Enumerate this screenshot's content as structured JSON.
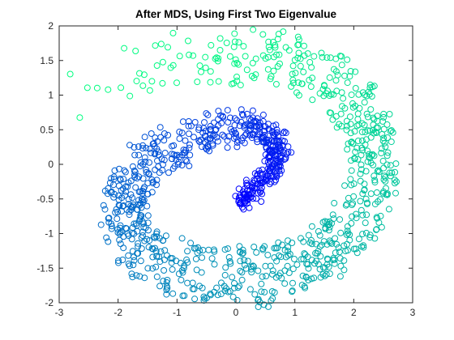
{
  "chart_data": {
    "type": "scatter",
    "title": "After MDS, Using First Two Eigenvalue",
    "xlabel": "",
    "ylabel": "",
    "xlim": [
      -3,
      3
    ],
    "ylim": [
      -2,
      2
    ],
    "x_ticks": [
      -3,
      -2,
      -1,
      0,
      1,
      2,
      3
    ],
    "y_ticks": [
      -2,
      -1.5,
      -1,
      -0.5,
      0,
      0.5,
      1,
      1.5,
      2
    ],
    "x_tick_labels": [
      "-3",
      "-2",
      "-1",
      "0",
      "1",
      "2",
      "3"
    ],
    "y_tick_labels": [
      "-2",
      "-1.5",
      "-1",
      "-0.5",
      "0",
      "0.5",
      "1",
      "1.5",
      "2"
    ],
    "grid": false,
    "legend": "none",
    "marker": "open-circle",
    "colormap": "winter",
    "color_start": "#0000ff",
    "color_end": "#00ff80",
    "description_of_data": "swiss-roll spiral, color varies along spiral parameter",
    "spiral_centerline": [
      {
        "t": 0.0,
        "x": 0.05,
        "y": -0.55
      },
      {
        "t": 0.05,
        "x": 0.4,
        "y": -0.3
      },
      {
        "t": 0.1,
        "x": 0.75,
        "y": 0.1
      },
      {
        "t": 0.15,
        "x": 0.6,
        "y": 0.45
      },
      {
        "t": 0.2,
        "x": 0.1,
        "y": 0.55
      },
      {
        "t": 0.25,
        "x": -0.5,
        "y": 0.45
      },
      {
        "t": 0.3,
        "x": -1.1,
        "y": 0.25
      },
      {
        "t": 0.35,
        "x": -1.65,
        "y": -0.1
      },
      {
        "t": 0.4,
        "x": -1.95,
        "y": -0.6
      },
      {
        "t": 0.45,
        "x": -1.85,
        "y": -1.05
      },
      {
        "t": 0.5,
        "x": -1.4,
        "y": -1.4
      },
      {
        "t": 0.55,
        "x": -0.7,
        "y": -1.55
      },
      {
        "t": 0.6,
        "x": 0.2,
        "y": -1.6
      },
      {
        "t": 0.65,
        "x": 1.0,
        "y": -1.5
      },
      {
        "t": 0.7,
        "x": 1.7,
        "y": -1.15
      },
      {
        "t": 0.75,
        "x": 2.25,
        "y": -0.55
      },
      {
        "t": 0.8,
        "x": 2.4,
        "y": 0.1
      },
      {
        "t": 0.85,
        "x": 2.15,
        "y": 0.75
      },
      {
        "t": 0.9,
        "x": 1.5,
        "y": 1.3
      },
      {
        "t": 0.94,
        "x": 0.6,
        "y": 1.55
      },
      {
        "t": 0.97,
        "x": -0.5,
        "y": 1.55
      },
      {
        "t": 1.0,
        "x": -2.8,
        "y": 1.05
      }
    ],
    "point_count": 1200
  }
}
